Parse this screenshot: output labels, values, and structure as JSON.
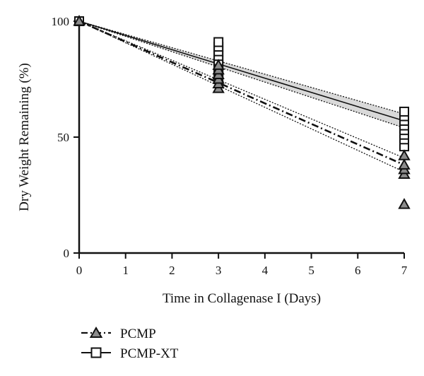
{
  "chart_data": {
    "type": "scatter",
    "xlabel": "Time in Collagenase I (Days)",
    "ylabel": "Dry Weight Remaining (%)",
    "xlim": [
      0,
      7
    ],
    "ylim": [
      0,
      100
    ],
    "x_ticks": [
      0,
      1,
      2,
      3,
      4,
      5,
      6,
      7
    ],
    "y_ticks": [
      0,
      50,
      100
    ],
    "grid": false,
    "legend_placement": "bottom-left",
    "series": [
      {
        "name": "PCMP",
        "marker": "triangle",
        "line_style": "dash-dot",
        "points": [
          {
            "x": 0,
            "y": 100
          },
          {
            "x": 3,
            "y": 71
          },
          {
            "x": 3,
            "y": 73
          },
          {
            "x": 3,
            "y": 75
          },
          {
            "x": 3,
            "y": 77
          },
          {
            "x": 3,
            "y": 79
          },
          {
            "x": 3,
            "y": 81
          },
          {
            "x": 7,
            "y": 21
          },
          {
            "x": 7,
            "y": 34
          },
          {
            "x": 7,
            "y": 36
          },
          {
            "x": 7,
            "y": 38
          },
          {
            "x": 7,
            "y": 42
          }
        ],
        "fit": {
          "x": [
            0,
            7
          ],
          "y": [
            100,
            38
          ]
        },
        "ci_upper": {
          "x": [
            0,
            7
          ],
          "y": [
            100,
            41
          ]
        },
        "ci_lower": {
          "x": [
            0,
            7
          ],
          "y": [
            100,
            35
          ]
        }
      },
      {
        "name": "PCMP-XT",
        "marker": "square",
        "line_style": "solid",
        "points": [
          {
            "x": 0,
            "y": 100
          },
          {
            "x": 3,
            "y": 75
          },
          {
            "x": 3,
            "y": 77
          },
          {
            "x": 3,
            "y": 79
          },
          {
            "x": 3,
            "y": 81
          },
          {
            "x": 3,
            "y": 83
          },
          {
            "x": 3,
            "y": 85
          },
          {
            "x": 3,
            "y": 87
          },
          {
            "x": 3,
            "y": 89
          },
          {
            "x": 3,
            "y": 91
          },
          {
            "x": 7,
            "y": 46
          },
          {
            "x": 7,
            "y": 49
          },
          {
            "x": 7,
            "y": 51
          },
          {
            "x": 7,
            "y": 53
          },
          {
            "x": 7,
            "y": 55
          },
          {
            "x": 7,
            "y": 57
          },
          {
            "x": 7,
            "y": 59
          },
          {
            "x": 7,
            "y": 61
          }
        ],
        "fit": {
          "x": [
            0,
            7
          ],
          "y": [
            100,
            57
          ]
        },
        "ci_upper": {
          "x": [
            0,
            7
          ],
          "y": [
            100,
            60
          ]
        },
        "ci_lower": {
          "x": [
            0,
            7
          ],
          "y": [
            100,
            54
          ]
        },
        "ci_fill": "#d9d9d9"
      }
    ]
  },
  "colors": {
    "ink": "#111111",
    "marker_fill_triangle": "#8c8c8c",
    "marker_fill_square": "#ffffff",
    "ci_band": "#d9d9d9"
  }
}
